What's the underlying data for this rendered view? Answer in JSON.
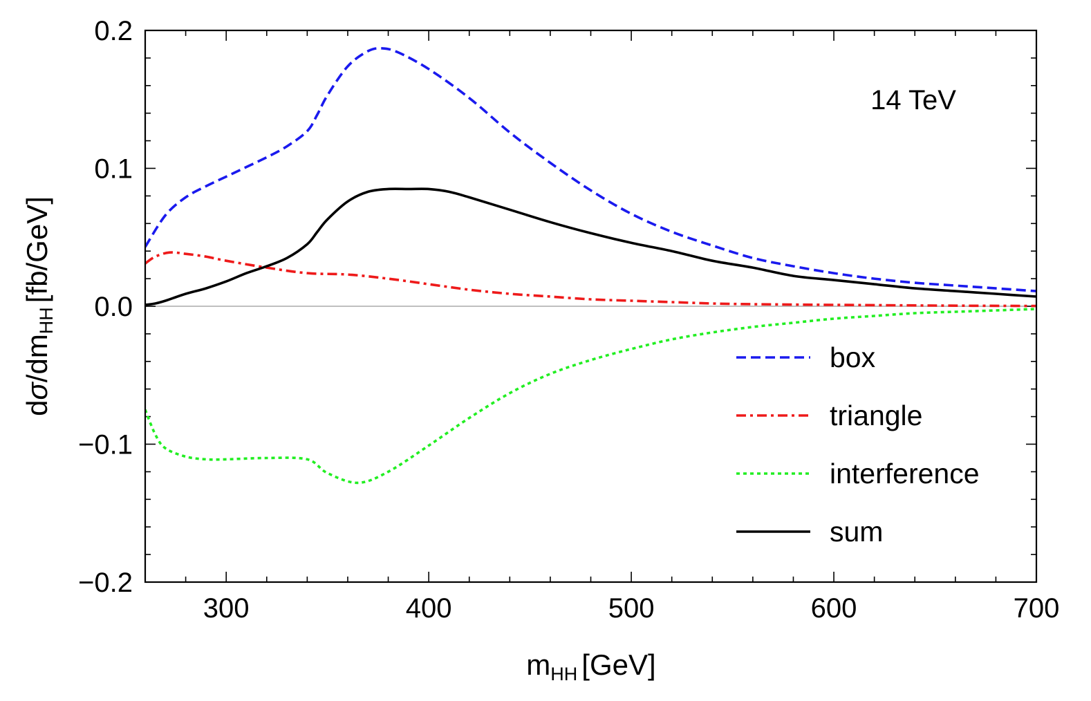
{
  "chart_data": {
    "type": "line",
    "annotation": "14 TeV",
    "xlabel": {
      "main": "m",
      "sub": "HH",
      "unit": "[GeV]"
    },
    "ylabel": {
      "pre": "d",
      "sigma": "σ",
      "mid": "/dm",
      "sub": "HH",
      "unit": "[fb/GeV]"
    },
    "xlim": [
      260,
      700
    ],
    "ylim": [
      -0.2,
      0.2
    ],
    "xticks": [
      300,
      400,
      500,
      600,
      700
    ],
    "xtick_labels": [
      "300",
      "400",
      "500",
      "600",
      "700"
    ],
    "yticks": [
      -0.2,
      -0.1,
      0.0,
      0.1,
      0.2
    ],
    "ytick_labels": [
      "−0.2",
      "−0.1",
      "0.0",
      "0.1",
      "0.2"
    ],
    "legend_position": "bottom-right",
    "series": [
      {
        "name": "box",
        "color": "#1a1aee",
        "dash": "dashed",
        "x": [
          260,
          270,
          280,
          290,
          300,
          310,
          320,
          330,
          340,
          345,
          350,
          360,
          370,
          377,
          385,
          400,
          420,
          440,
          460,
          480,
          500,
          520,
          540,
          560,
          580,
          600,
          620,
          640,
          660,
          680,
          700
        ],
        "y": [
          0.043,
          0.066,
          0.079,
          0.087,
          0.094,
          0.101,
          0.108,
          0.116,
          0.127,
          0.139,
          0.153,
          0.174,
          0.185,
          0.187,
          0.184,
          0.172,
          0.151,
          0.126,
          0.104,
          0.084,
          0.067,
          0.054,
          0.044,
          0.035,
          0.029,
          0.024,
          0.02,
          0.017,
          0.015,
          0.013,
          0.011
        ]
      },
      {
        "name": "triangle",
        "color": "#ee1a1a",
        "dash": "dashdot",
        "x": [
          260,
          265,
          272,
          280,
          290,
          300,
          320,
          340,
          360,
          380,
          400,
          420,
          440,
          460,
          480,
          500,
          520,
          540,
          560,
          600,
          650,
          700
        ],
        "y": [
          0.031,
          0.036,
          0.039,
          0.038,
          0.036,
          0.033,
          0.028,
          0.024,
          0.023,
          0.02,
          0.016,
          0.012,
          0.009,
          0.007,
          0.005,
          0.004,
          0.003,
          0.002,
          0.0015,
          0.001,
          0.0005,
          0.0002
        ]
      },
      {
        "name": "interference",
        "color": "#22ee22",
        "dash": "dotted",
        "x": [
          260,
          265,
          270,
          280,
          290,
          300,
          320,
          340,
          350,
          365,
          380,
          400,
          420,
          440,
          460,
          480,
          500,
          520,
          540,
          560,
          580,
          600,
          620,
          640,
          660,
          680,
          700
        ],
        "y": [
          -0.075,
          -0.093,
          -0.103,
          -0.109,
          -0.111,
          -0.111,
          -0.11,
          -0.111,
          -0.121,
          -0.128,
          -0.12,
          -0.101,
          -0.081,
          -0.063,
          -0.049,
          -0.039,
          -0.031,
          -0.024,
          -0.019,
          -0.015,
          -0.012,
          -0.009,
          -0.007,
          -0.005,
          -0.004,
          -0.003,
          -0.002
        ]
      },
      {
        "name": "sum",
        "color": "#000000",
        "dash": "solid",
        "x": [
          260,
          265,
          270,
          280,
          290,
          300,
          310,
          320,
          330,
          340,
          345,
          350,
          360,
          370,
          380,
          390,
          400,
          410,
          420,
          440,
          460,
          480,
          500,
          520,
          540,
          560,
          580,
          600,
          620,
          640,
          660,
          680,
          700
        ],
        "y": [
          0.001,
          0.002,
          0.004,
          0.009,
          0.013,
          0.018,
          0.024,
          0.029,
          0.035,
          0.045,
          0.054,
          0.063,
          0.076,
          0.083,
          0.085,
          0.085,
          0.085,
          0.083,
          0.079,
          0.07,
          0.061,
          0.053,
          0.046,
          0.04,
          0.033,
          0.028,
          0.022,
          0.019,
          0.016,
          0.013,
          0.011,
          0.009,
          0.007
        ]
      }
    ]
  }
}
